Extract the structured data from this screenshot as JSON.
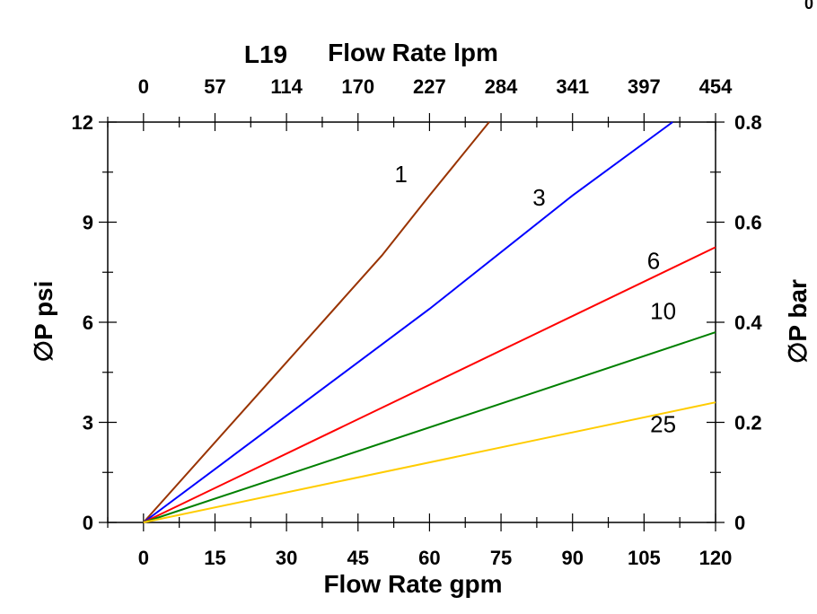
{
  "corner_mark": "0",
  "chart_data": {
    "type": "line",
    "title": "L19",
    "xlabel": "Flow Rate gpm",
    "x2label": "Flow Rate lpm",
    "ylabel": "∅P psi",
    "y2label": "∅P bar",
    "xlim": [
      -7.5,
      120
    ],
    "ylim": [
      0,
      12
    ],
    "x_ticks": [
      "0",
      "15",
      "30",
      "45",
      "60",
      "75",
      "90",
      "105",
      "120"
    ],
    "x2_ticks": [
      "0",
      "57",
      "114",
      "170",
      "227",
      "284",
      "341",
      "397",
      "454"
    ],
    "y_ticks": [
      "0",
      "3",
      "6",
      "9",
      "12"
    ],
    "y2_ticks": [
      "0",
      "0.2",
      "0.4",
      "0.6",
      "0.8"
    ],
    "grid": false,
    "legend": "inline labels",
    "series": [
      {
        "name": "1",
        "color": "#993300",
        "x": [
          0,
          25,
          50,
          60,
          72.5
        ],
        "y": [
          0,
          4.0,
          8.0,
          9.8,
          12.0
        ]
      },
      {
        "name": "3",
        "color": "#0000ff",
        "x": [
          0,
          30,
          60,
          90,
          111
        ],
        "y": [
          0,
          3.2,
          6.4,
          9.8,
          12.0
        ]
      },
      {
        "name": "6",
        "color": "#ff0000",
        "x": [
          0,
          40,
          80,
          120
        ],
        "y": [
          0,
          2.75,
          5.5,
          8.25
        ]
      },
      {
        "name": "10",
        "color": "#008000",
        "x": [
          0,
          40,
          80,
          120
        ],
        "y": [
          0,
          1.9,
          3.8,
          5.7
        ]
      },
      {
        "name": "25",
        "color": "#ffcc00",
        "x": [
          0,
          40,
          80,
          120
        ],
        "y": [
          0,
          1.2,
          2.4,
          3.6
        ]
      }
    ],
    "annotations": [
      {
        "text": "1",
        "x": 54,
        "y": 10.2
      },
      {
        "text": "3",
        "x": 83,
        "y": 9.5
      },
      {
        "text": "6",
        "x": 107,
        "y": 7.6
      },
      {
        "text": "10",
        "x": 109,
        "y": 6.1
      },
      {
        "text": "25",
        "x": 109,
        "y": 2.7
      }
    ]
  }
}
